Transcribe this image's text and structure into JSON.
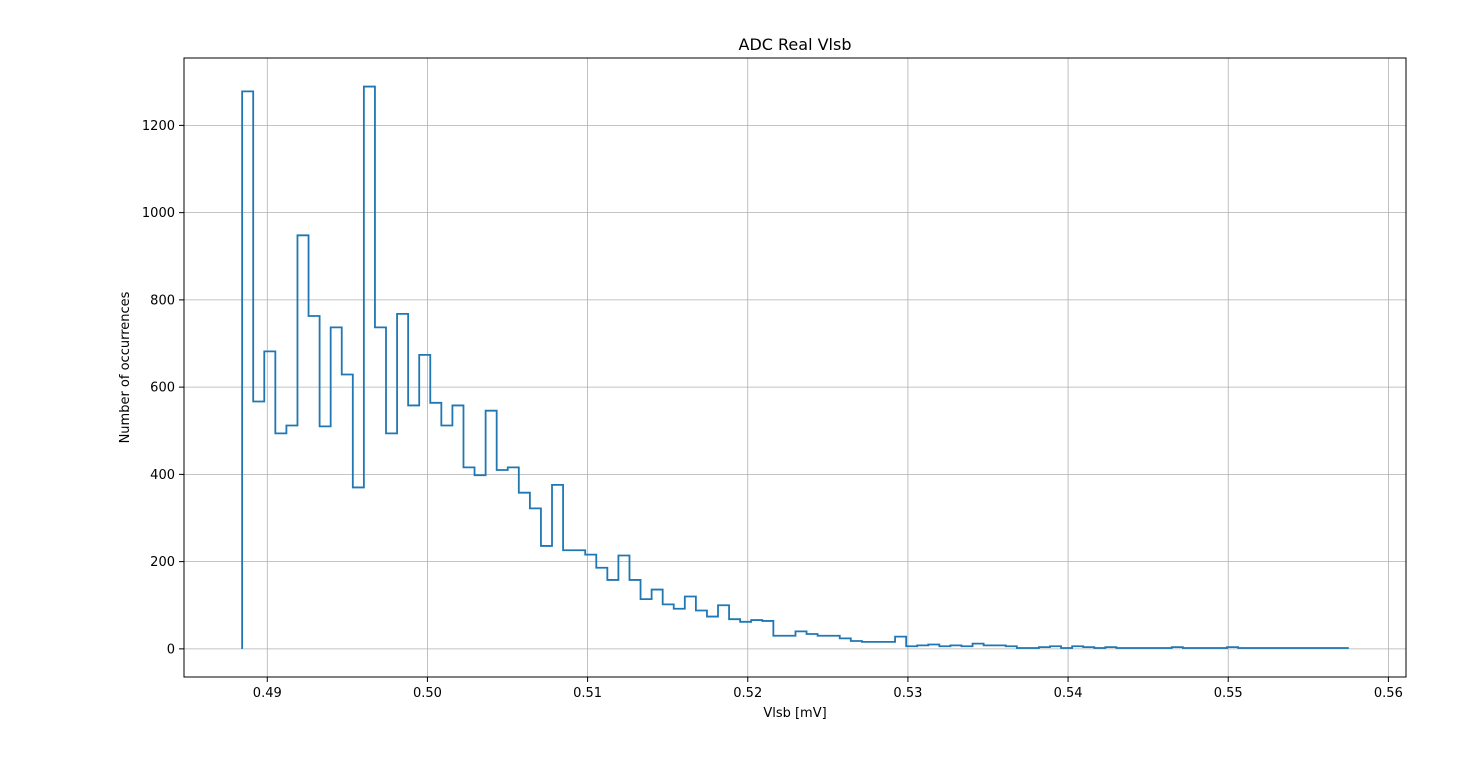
{
  "chart_data": {
    "type": "histogram-step",
    "title": "ADC Real Vlsb",
    "xlabel": "Vlsb [mV]",
    "ylabel": "Number of occurrences",
    "xlim": [
      0.4848,
      0.5611
    ],
    "ylim": [
      -64.5,
      1354.5
    ],
    "grid": true,
    "line_color": "#1f77b4",
    "xticks": [
      0.49,
      0.5,
      0.51,
      0.52,
      0.53,
      0.54,
      0.55,
      0.56
    ],
    "xtick_labels": [
      "0.49",
      "0.50",
      "0.51",
      "0.52",
      "0.53",
      "0.54",
      "0.55",
      "0.56"
    ],
    "yticks": [
      0,
      200,
      400,
      600,
      800,
      1000,
      1200
    ],
    "ytick_labels": [
      "0",
      "200",
      "400",
      "600",
      "800",
      "1000",
      "1200"
    ],
    "bin_start": 0.48843,
    "bin_width": 0.000691,
    "counts": [
      1278,
      567,
      682,
      494,
      512,
      948,
      763,
      510,
      737,
      629,
      370,
      1289,
      737,
      494,
      768,
      558,
      674,
      564,
      512,
      558,
      416,
      398,
      546,
      410,
      416,
      358,
      322,
      236,
      376,
      226,
      226,
      216,
      186,
      158,
      214,
      158,
      114,
      136,
      102,
      92,
      120,
      88,
      74,
      100,
      68,
      62,
      66,
      64,
      30,
      30,
      40,
      34,
      30,
      30,
      24,
      18,
      16,
      16,
      16,
      28,
      6,
      8,
      10,
      6,
      8,
      6,
      12,
      8,
      8,
      6,
      2,
      2,
      4,
      6,
      2,
      6,
      4,
      2,
      4,
      2,
      2,
      2,
      2,
      2,
      4,
      2,
      2,
      2,
      2,
      4,
      2,
      2,
      2,
      2,
      2,
      2,
      2,
      2,
      2,
      2
    ]
  }
}
